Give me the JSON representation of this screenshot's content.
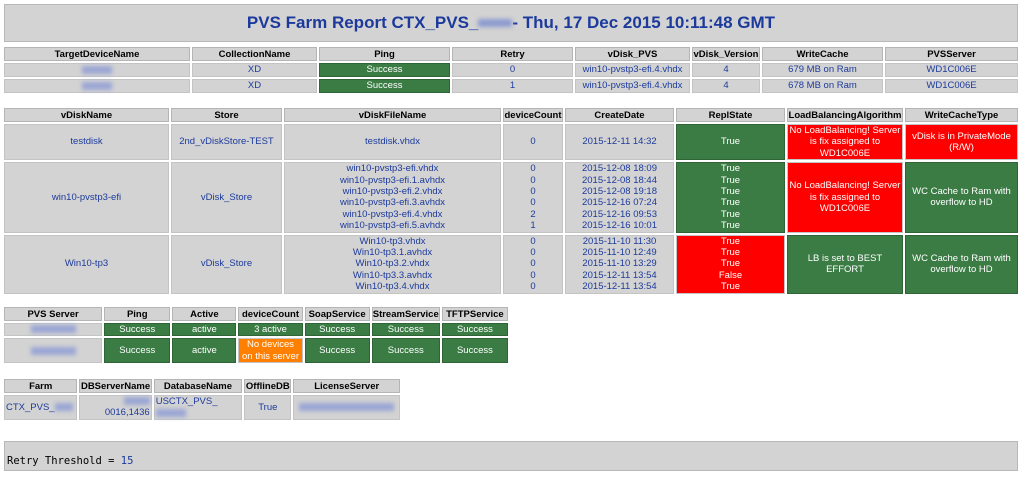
{
  "title": {
    "prefix": "PVS Farm Report CTX_PVS_",
    "suffix": " - Thu, 17 Dec 2015 10:11:48 GMT"
  },
  "colors": {
    "success": "#3a7c44",
    "error": "#ff0000",
    "warning": "#ff8000",
    "header": "#d3d3d3",
    "link": "#1c3a9c"
  },
  "devices": {
    "headers": [
      "TargetDeviceName",
      "CollectionName",
      "Ping",
      "Retry",
      "vDisk_PVS",
      "vDisk_Version",
      "WriteCache",
      "PVSServer"
    ],
    "rows": [
      [
        "",
        "XD",
        "Success",
        "0",
        "win10-pvstp3-efi.4.vhdx",
        "4",
        "679 MB on Ram",
        "WD1C006E"
      ],
      [
        "",
        "XD",
        "Success",
        "1",
        "win10-pvstp3-efi.4.vhdx",
        "4",
        "678 MB on Ram",
        "WD1C006E"
      ]
    ]
  },
  "vdisks": {
    "headers": [
      "vDiskName",
      "Store",
      "vDiskFileName",
      "deviceCount",
      "CreateDate",
      "ReplState",
      "LoadBalancingAlgorithm",
      "WriteCacheType"
    ],
    "rows": [
      {
        "name": "testdisk",
        "store": "2nd_vDiskStore-TEST",
        "files": [
          "testdisk.vhdx"
        ],
        "counts": [
          "0"
        ],
        "dates": [
          "2015-12-11 14:32"
        ],
        "repl": [
          "True"
        ],
        "repl_status": "ok",
        "lb": "No LoadBalancing! Server is fix assigned to WD1C006E",
        "lb_status": "error",
        "wc": "vDisk is in PrivateMode (R/W)",
        "wc_status": "error"
      },
      {
        "name": "win10-pvstp3-efi",
        "store": "vDisk_Store",
        "files": [
          "win10-pvstp3-efi.vhdx",
          "win10-pvstp3-efi.1.avhdx",
          "win10-pvstp3-efi.2.vhdx",
          "win10-pvstp3-efi.3.avhdx",
          "win10-pvstp3-efi.4.vhdx",
          "win10-pvstp3-efi.5.avhdx"
        ],
        "counts": [
          "0",
          "0",
          "0",
          "0",
          "2",
          "1"
        ],
        "dates": [
          "2015-12-08 18:09",
          "2015-12-08 18:44",
          "2015-12-08 19:18",
          "2015-12-16 07:24",
          "2015-12-16 09:53",
          "2015-12-16 10:01"
        ],
        "repl": [
          "True",
          "True",
          "True",
          "True",
          "True",
          "True"
        ],
        "repl_status": "ok",
        "lb": "No LoadBalancing! Server is fix assigned to WD1C006E",
        "lb_status": "error",
        "wc": "WC Cache to Ram with overflow to HD",
        "wc_status": "ok"
      },
      {
        "name": "Win10-tp3",
        "store": "vDisk_Store",
        "files": [
          "Win10-tp3.vhdx",
          "Win10-tp3.1.avhdx",
          "Win10-tp3.2.vhdx",
          "Win10-tp3.3.avhdx",
          "Win10-tp3.4.vhdx"
        ],
        "counts": [
          "0",
          "0",
          "0",
          "0",
          "0"
        ],
        "dates": [
          "2015-11-10 11:30",
          "2015-11-10 12:49",
          "2015-11-10 13:29",
          "2015-12-11 13:54",
          "2015-12-11 13:54"
        ],
        "repl": [
          "True",
          "True",
          "True",
          "False",
          "True"
        ],
        "repl_status": "error",
        "lb": "LB is set to BEST EFFORT",
        "lb_status": "ok",
        "wc": "WC Cache to Ram with overflow to HD",
        "wc_status": "ok"
      }
    ]
  },
  "servers": {
    "headers": [
      "PVS Server",
      "Ping",
      "Active",
      "deviceCount",
      "SoapService",
      "StreamService",
      "TFTPService"
    ],
    "rows": [
      [
        "",
        "Success",
        "active",
        "3 active",
        "Success",
        "Success",
        "Success"
      ],
      [
        "",
        "Success",
        "active",
        "No devices on this server",
        "Success",
        "Success",
        "Success"
      ]
    ]
  },
  "farm": {
    "headers": [
      "Farm",
      "DBServerName",
      "DatabaseName",
      "OfflineDB",
      "LicenseServer"
    ],
    "row": [
      "CTX_PVS_",
      "0016,1436",
      "USCTX_PVS_",
      "True",
      ""
    ]
  },
  "footer": {
    "label": "Retry Threshold = ",
    "value": "15"
  }
}
